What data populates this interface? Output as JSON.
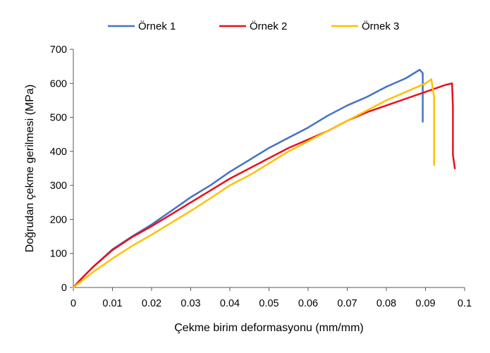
{
  "chart_data": {
    "type": "line",
    "title": "",
    "xlabel": "Çekme birim deformasyonu (mm/mm)",
    "ylabel": "Doğrudan çekme gerilmesi (MPa)",
    "xlim": [
      0,
      0.1
    ],
    "ylim": [
      0,
      700
    ],
    "x_ticks": [
      "0",
      "0.01",
      "0.02",
      "0.03",
      "0.04",
      "0.05",
      "0.06",
      "0.07",
      "0.08",
      "0.09",
      "0.1"
    ],
    "y_ticks": [
      "0",
      "100",
      "200",
      "300",
      "400",
      "500",
      "600",
      "700"
    ],
    "grid": false,
    "legend_position": "top",
    "series": [
      {
        "name": "Örnek 1",
        "color": "#4472C4",
        "points": [
          [
            0,
            0
          ],
          [
            0.002,
            25
          ],
          [
            0.005,
            60
          ],
          [
            0.01,
            112
          ],
          [
            0.015,
            150
          ],
          [
            0.02,
            185
          ],
          [
            0.025,
            225
          ],
          [
            0.03,
            265
          ],
          [
            0.035,
            300
          ],
          [
            0.04,
            340
          ],
          [
            0.045,
            375
          ],
          [
            0.05,
            410
          ],
          [
            0.055,
            440
          ],
          [
            0.06,
            470
          ],
          [
            0.065,
            505
          ],
          [
            0.07,
            535
          ],
          [
            0.075,
            560
          ],
          [
            0.08,
            590
          ],
          [
            0.085,
            615
          ],
          [
            0.0885,
            640
          ],
          [
            0.0893,
            630
          ],
          [
            0.0893,
            487
          ]
        ]
      },
      {
        "name": "Örnek 2",
        "color": "#E8101A",
        "points": [
          [
            0,
            0
          ],
          [
            0.002,
            25
          ],
          [
            0.005,
            60
          ],
          [
            0.01,
            110
          ],
          [
            0.015,
            148
          ],
          [
            0.02,
            180
          ],
          [
            0.025,
            215
          ],
          [
            0.03,
            250
          ],
          [
            0.035,
            285
          ],
          [
            0.04,
            320
          ],
          [
            0.045,
            350
          ],
          [
            0.05,
            380
          ],
          [
            0.055,
            410
          ],
          [
            0.06,
            435
          ],
          [
            0.065,
            460
          ],
          [
            0.07,
            490
          ],
          [
            0.075,
            515
          ],
          [
            0.08,
            535
          ],
          [
            0.085,
            555
          ],
          [
            0.09,
            575
          ],
          [
            0.095,
            595
          ],
          [
            0.0968,
            600
          ],
          [
            0.097,
            530
          ],
          [
            0.097,
            390
          ],
          [
            0.0975,
            350
          ]
        ]
      },
      {
        "name": "Örnek 3",
        "color": "#FFC000",
        "points": [
          [
            0,
            0
          ],
          [
            0.005,
            45
          ],
          [
            0.01,
            85
          ],
          [
            0.015,
            122
          ],
          [
            0.02,
            155
          ],
          [
            0.025,
            190
          ],
          [
            0.03,
            225
          ],
          [
            0.035,
            262
          ],
          [
            0.04,
            300
          ],
          [
            0.045,
            330
          ],
          [
            0.05,
            365
          ],
          [
            0.055,
            400
          ],
          [
            0.06,
            430
          ],
          [
            0.065,
            460
          ],
          [
            0.07,
            490
          ],
          [
            0.075,
            520
          ],
          [
            0.08,
            550
          ],
          [
            0.085,
            575
          ],
          [
            0.09,
            600
          ],
          [
            0.0915,
            612
          ],
          [
            0.0922,
            560
          ],
          [
            0.0922,
            360
          ]
        ]
      }
    ]
  }
}
